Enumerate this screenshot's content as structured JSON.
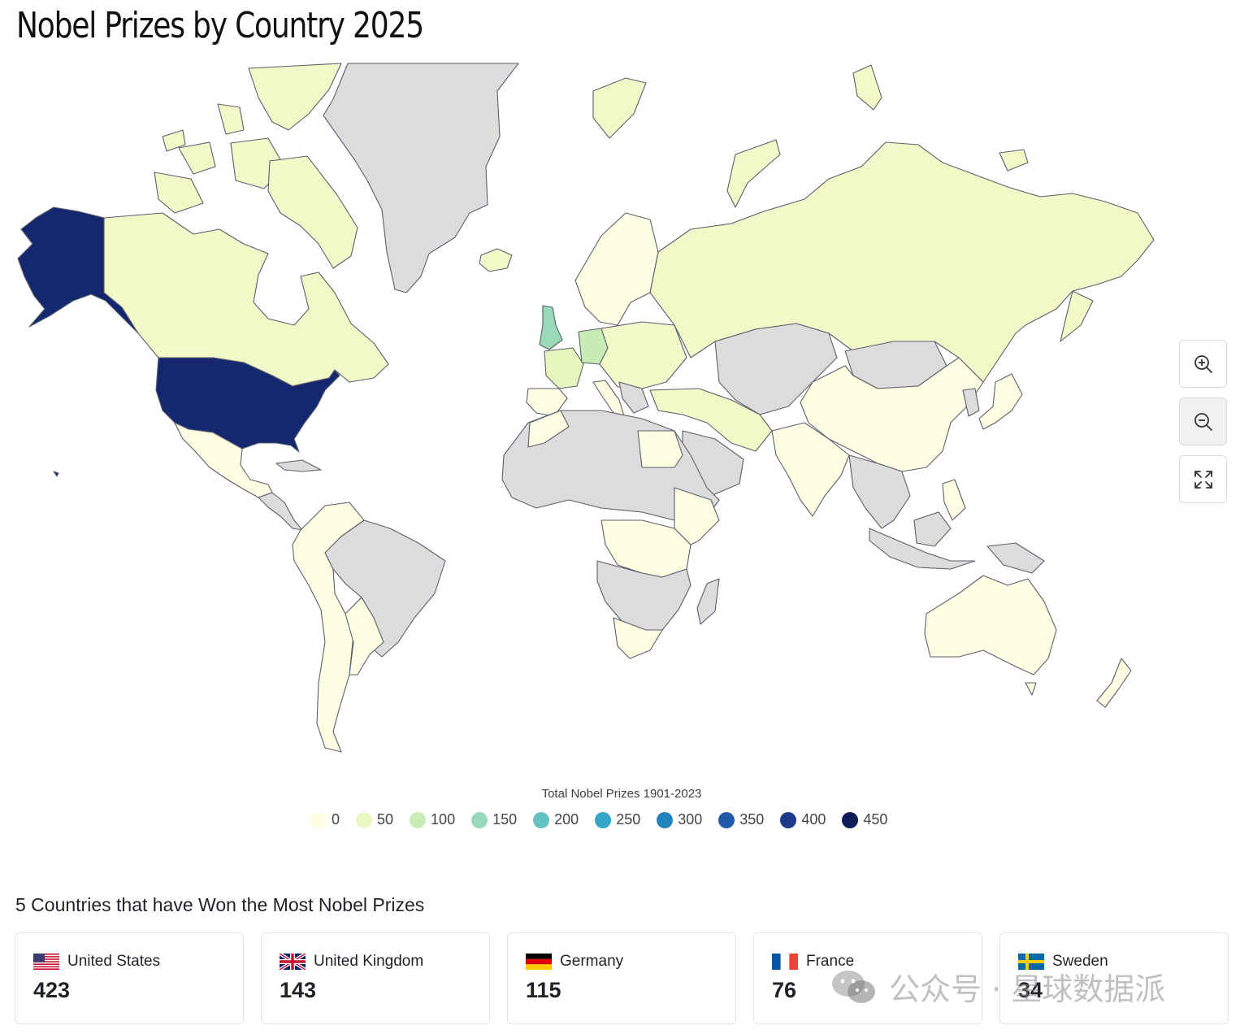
{
  "page": {
    "title": "Nobel Prizes by Country 2025"
  },
  "map": {
    "colors": {
      "no_data": "#dcdcdc",
      "zero": "#f7fbcf",
      "fifty": "#e6f5be",
      "hundred": "#c9ebb6",
      "one_fifty": "#98d9b8",
      "top": "#15286f",
      "border": "#58606d"
    }
  },
  "controls": {
    "zoom_in": {
      "icon": "zoom-in-icon"
    },
    "zoom_out": {
      "icon": "zoom-out-icon"
    },
    "fullscreen": {
      "icon": "fullscreen-icon"
    }
  },
  "legend": {
    "title": "Total Nobel Prizes 1901-2023",
    "items": [
      {
        "label": "0",
        "color": "#fefee2"
      },
      {
        "label": "50",
        "color": "#ecf8c4"
      },
      {
        "label": "100",
        "color": "#c9ebb6"
      },
      {
        "label": "150",
        "color": "#98d9b8"
      },
      {
        "label": "200",
        "color": "#64c2c0"
      },
      {
        "label": "250",
        "color": "#36a5c8"
      },
      {
        "label": "300",
        "color": "#2083bd"
      },
      {
        "label": "350",
        "color": "#2258a8"
      },
      {
        "label": "400",
        "color": "#1e3a8a"
      },
      {
        "label": "450",
        "color": "#0e1d57"
      }
    ]
  },
  "top_countries": {
    "heading": "5 Countries that have Won the Most Nobel Prizes",
    "items": [
      {
        "name": "United States",
        "count": "423",
        "flag": "us-flag-icon"
      },
      {
        "name": "United Kingdom",
        "count": "143",
        "flag": "uk-flag-icon"
      },
      {
        "name": "Germany",
        "count": "115",
        "flag": "germany-flag-icon"
      },
      {
        "name": "France",
        "count": "76",
        "flag": "france-flag-icon"
      },
      {
        "name": "Sweden",
        "count": "34",
        "flag": "sweden-flag-icon"
      }
    ]
  },
  "watermark": {
    "text": "公众号 · 星球数据派",
    "icon": "wechat-icon"
  }
}
